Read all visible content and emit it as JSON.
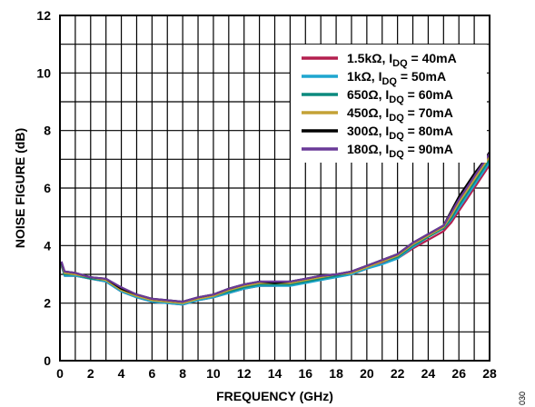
{
  "chart_data": {
    "type": "line",
    "title": "",
    "xlabel": "FREQUENCY (GHz)",
    "ylabel": "NOISE FIGURE (dB)",
    "xlim": [
      0,
      28
    ],
    "ylim": [
      0,
      12
    ],
    "x_ticks": [
      "0",
      "2",
      "4",
      "6",
      "8",
      "10",
      "12",
      "14",
      "16",
      "18",
      "20",
      "22",
      "24",
      "26",
      "28"
    ],
    "y_ticks": [
      "0",
      "2",
      "4",
      "6",
      "8",
      "10",
      "12"
    ],
    "grid": true,
    "legend_position": "top-right",
    "figure_id": "030",
    "x": [
      0.1,
      0.3,
      1,
      2,
      3,
      4,
      5,
      6,
      7,
      8,
      9,
      10,
      11,
      12,
      13,
      14,
      15,
      16,
      17,
      18,
      19,
      20,
      21,
      22,
      23,
      24,
      25,
      25.5,
      26,
      26.5,
      27,
      27.5,
      28
    ],
    "series": [
      {
        "name": "1.5kΩ, I",
        "sub": "DQ",
        "tail": " = 40mA",
        "color": "#b41f4e",
        "values": [
          3.3,
          2.95,
          2.95,
          2.85,
          2.75,
          2.4,
          2.2,
          2.05,
          2.0,
          1.95,
          2.1,
          2.2,
          2.35,
          2.5,
          2.6,
          2.6,
          2.65,
          2.75,
          2.85,
          2.95,
          3.0,
          3.2,
          3.4,
          3.55,
          3.9,
          4.2,
          4.5,
          4.8,
          5.2,
          5.6,
          6.0,
          6.4,
          6.8
        ]
      },
      {
        "name": "1kΩ, I",
        "sub": "DQ",
        "tail": " = 50mA",
        "color": "#1fa6cf",
        "values": [
          3.35,
          2.95,
          2.95,
          2.85,
          2.75,
          2.4,
          2.2,
          2.05,
          2.0,
          1.95,
          2.1,
          2.2,
          2.35,
          2.5,
          2.6,
          2.6,
          2.6,
          2.7,
          2.8,
          2.9,
          3.0,
          3.2,
          3.35,
          3.55,
          3.95,
          4.3,
          4.6,
          4.9,
          5.3,
          5.7,
          6.1,
          6.5,
          6.9
        ]
      },
      {
        "name": "650Ω, I",
        "sub": "DQ",
        "tail": " = 60mA",
        "color": "#0c8a7e",
        "values": [
          3.35,
          3.0,
          3.0,
          2.85,
          2.8,
          2.45,
          2.25,
          2.1,
          2.05,
          2.0,
          2.15,
          2.25,
          2.4,
          2.55,
          2.65,
          2.65,
          2.65,
          2.75,
          2.85,
          2.95,
          3.05,
          3.25,
          3.45,
          3.6,
          4.0,
          4.3,
          4.6,
          4.95,
          5.4,
          5.8,
          6.2,
          6.6,
          7.0
        ]
      },
      {
        "name": "450Ω, I",
        "sub": "DQ",
        "tail": " = 70mA",
        "color": "#c4a236",
        "values": [
          3.4,
          3.05,
          3.0,
          2.9,
          2.8,
          2.45,
          2.25,
          2.1,
          2.05,
          2.0,
          2.15,
          2.25,
          2.45,
          2.6,
          2.7,
          2.7,
          2.7,
          2.8,
          2.9,
          3.0,
          3.05,
          3.25,
          3.45,
          3.65,
          4.05,
          4.35,
          4.65,
          5.05,
          5.5,
          5.9,
          6.3,
          6.7,
          7.1
        ]
      },
      {
        "name": "300Ω, I",
        "sub": "DQ",
        "tail": " = 80mA",
        "color": "#000000",
        "values": [
          3.4,
          3.1,
          3.05,
          2.9,
          2.85,
          2.5,
          2.3,
          2.15,
          2.1,
          2.05,
          2.2,
          2.3,
          2.5,
          2.65,
          2.75,
          2.7,
          2.75,
          2.85,
          2.95,
          3.0,
          3.1,
          3.3,
          3.5,
          3.7,
          4.1,
          4.4,
          4.7,
          5.2,
          5.7,
          6.1,
          6.5,
          6.85,
          7.25
        ]
      },
      {
        "name": "180Ω, I",
        "sub": "DQ",
        "tail": " = 90mA",
        "color": "#6a3a98",
        "values": [
          3.45,
          3.1,
          3.05,
          2.9,
          2.85,
          2.55,
          2.3,
          2.15,
          2.1,
          2.05,
          2.2,
          2.3,
          2.5,
          2.65,
          2.75,
          2.75,
          2.75,
          2.85,
          2.95,
          3.0,
          3.1,
          3.3,
          3.5,
          3.7,
          4.1,
          4.4,
          4.7,
          5.15,
          5.6,
          6.0,
          6.4,
          6.8,
          7.2
        ]
      }
    ]
  }
}
